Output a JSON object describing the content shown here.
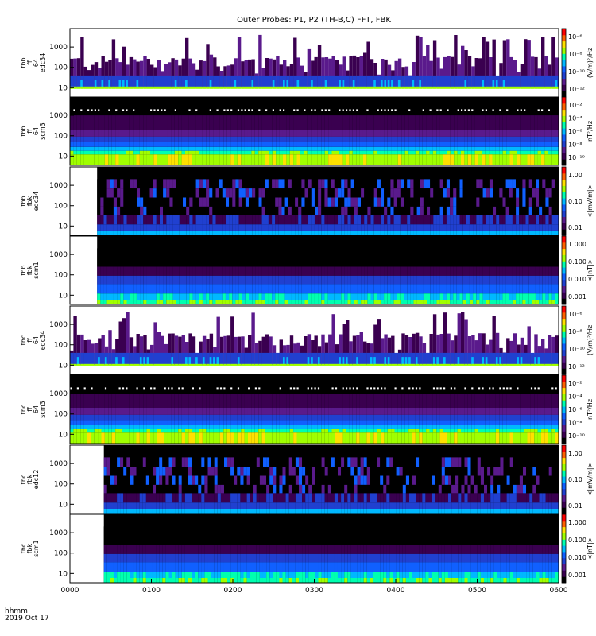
{
  "title": "Outer Probes: P1, P2 (TH-B,C) FFT, FBK",
  "footer": {
    "time_label": "hhmm",
    "date_label": "2019 Oct 17"
  },
  "colors": {
    "spectral_scale": [
      "#000000",
      "#3a0050",
      "#5a1a8c",
      "#2040d0",
      "#1060ff",
      "#00b8ff",
      "#00ffb0",
      "#a0ff00",
      "#ffe000",
      "#ff6000",
      "#ff0000"
    ]
  },
  "chart_data": [
    {
      "type": "heatmap",
      "panel_label": [
        "thb",
        "ff",
        "64",
        "edc34"
      ],
      "y_scale": "log",
      "y_ticks": [
        "10",
        "100",
        "1000"
      ],
      "colorbar_label": "(V/m)²/Hz",
      "colorbar_ticks": [
        "10⁻⁶",
        "10⁻⁸",
        "10⁻¹⁰",
        "10⁻¹²"
      ],
      "style": "sparse_e"
    },
    {
      "type": "heatmap",
      "panel_label": [
        "thb",
        "ff",
        "64",
        "scm3"
      ],
      "y_scale": "log",
      "y_ticks": [
        "10",
        "100",
        "1000"
      ],
      "colorbar_label": "nT²/Hz",
      "colorbar_ticks": [
        "10⁻²",
        "10⁻⁴",
        "10⁻⁶",
        "10⁻⁸",
        "10⁻¹⁰"
      ],
      "style": "dense_b"
    },
    {
      "type": "heatmap",
      "panel_label": [
        "thb",
        "fbk",
        "edc34"
      ],
      "y_scale": "log",
      "y_ticks": [
        "10",
        "100",
        "1000"
      ],
      "colorbar_label": "<|mV/m|>",
      "colorbar_ticks": [
        "1.00",
        "0.10",
        "0.01"
      ],
      "style": "fbk_e",
      "data_start": "0020"
    },
    {
      "type": "heatmap",
      "panel_label": [
        "thb",
        "fbk",
        "scm1"
      ],
      "y_scale": "log",
      "y_ticks": [
        "10",
        "100",
        "1000"
      ],
      "colorbar_label": "<|nT|>",
      "colorbar_ticks": [
        "1.000",
        "0.100",
        "0.010",
        "0.001"
      ],
      "style": "fbk_b",
      "data_start": "0020"
    },
    {
      "type": "heatmap",
      "panel_label": [
        "thc",
        "ff",
        "64",
        "edc34"
      ],
      "y_scale": "log",
      "y_ticks": [
        "10",
        "100",
        "1000"
      ],
      "colorbar_label": "(V/m)²/Hz",
      "colorbar_ticks": [
        "10⁻⁶",
        "10⁻⁸",
        "10⁻¹⁰",
        "10⁻¹²"
      ],
      "style": "sparse_e"
    },
    {
      "type": "heatmap",
      "panel_label": [
        "thc",
        "ff",
        "64",
        "scm3"
      ],
      "y_scale": "log",
      "y_ticks": [
        "10",
        "100",
        "1000"
      ],
      "colorbar_label": "nT²/Hz",
      "colorbar_ticks": [
        "10⁻²",
        "10⁻⁴",
        "10⁻⁶",
        "10⁻⁸",
        "10⁻¹⁰"
      ],
      "style": "dense_b"
    },
    {
      "type": "heatmap",
      "panel_label": [
        "thc",
        "fbk",
        "edc12"
      ],
      "y_scale": "log",
      "y_ticks": [
        "10",
        "100",
        "1000"
      ],
      "colorbar_label": "<|mV/m|>",
      "colorbar_ticks": [
        "1.00",
        "0.10",
        "0.01"
      ],
      "style": "fbk_e",
      "data_start": "0025"
    },
    {
      "type": "heatmap",
      "panel_label": [
        "thc",
        "fbk",
        "scm1"
      ],
      "y_scale": "log",
      "y_ticks": [
        "10",
        "100",
        "1000"
      ],
      "colorbar_label": "<|nT|>",
      "colorbar_ticks": [
        "1.000",
        "0.100",
        "0.010",
        "0.001"
      ],
      "style": "fbk_b",
      "data_start": "0025"
    }
  ],
  "x_axis": {
    "ticks": [
      "0000",
      "0100",
      "0200",
      "0300",
      "0400",
      "0500",
      "0600"
    ],
    "range": [
      "0000",
      "0600"
    ]
  }
}
